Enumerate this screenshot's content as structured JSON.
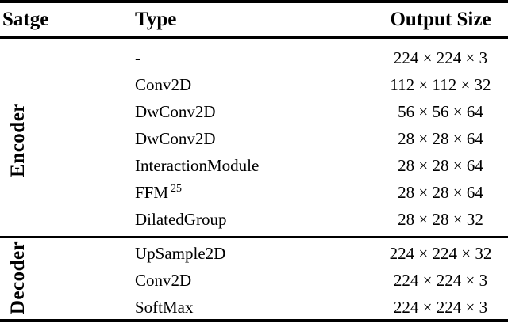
{
  "table": {
    "header": {
      "stage": "Satge",
      "type": "Type",
      "output_size": "Output Size"
    },
    "groups": [
      {
        "stage": "Encoder",
        "rows": [
          {
            "type": "-",
            "size": "224 × 224 × 3"
          },
          {
            "type": "Conv2D",
            "size": "112 × 112 × 32"
          },
          {
            "type": "DwConv2D",
            "size": "56 × 56 × 64"
          },
          {
            "type": "DwConv2D",
            "size": "28 × 28 × 64"
          },
          {
            "type": "InteractionModule",
            "size": "28 × 28 × 64"
          },
          {
            "type": "FFM",
            "type_sup": "25",
            "size": "28 × 28 × 64"
          },
          {
            "type": "DilatedGroup",
            "size": "28 × 28 × 32"
          }
        ]
      },
      {
        "stage": "Decoder",
        "rows": [
          {
            "type": "UpSample2D",
            "size": "224 × 224 × 32"
          },
          {
            "type": "Conv2D",
            "size": "224 × 224 × 3"
          },
          {
            "type": "SoftMax",
            "size": "224 × 224 × 3"
          }
        ]
      }
    ]
  },
  "colors": {
    "text": "#000000",
    "rule": "#000000",
    "background": "#ffffff"
  }
}
